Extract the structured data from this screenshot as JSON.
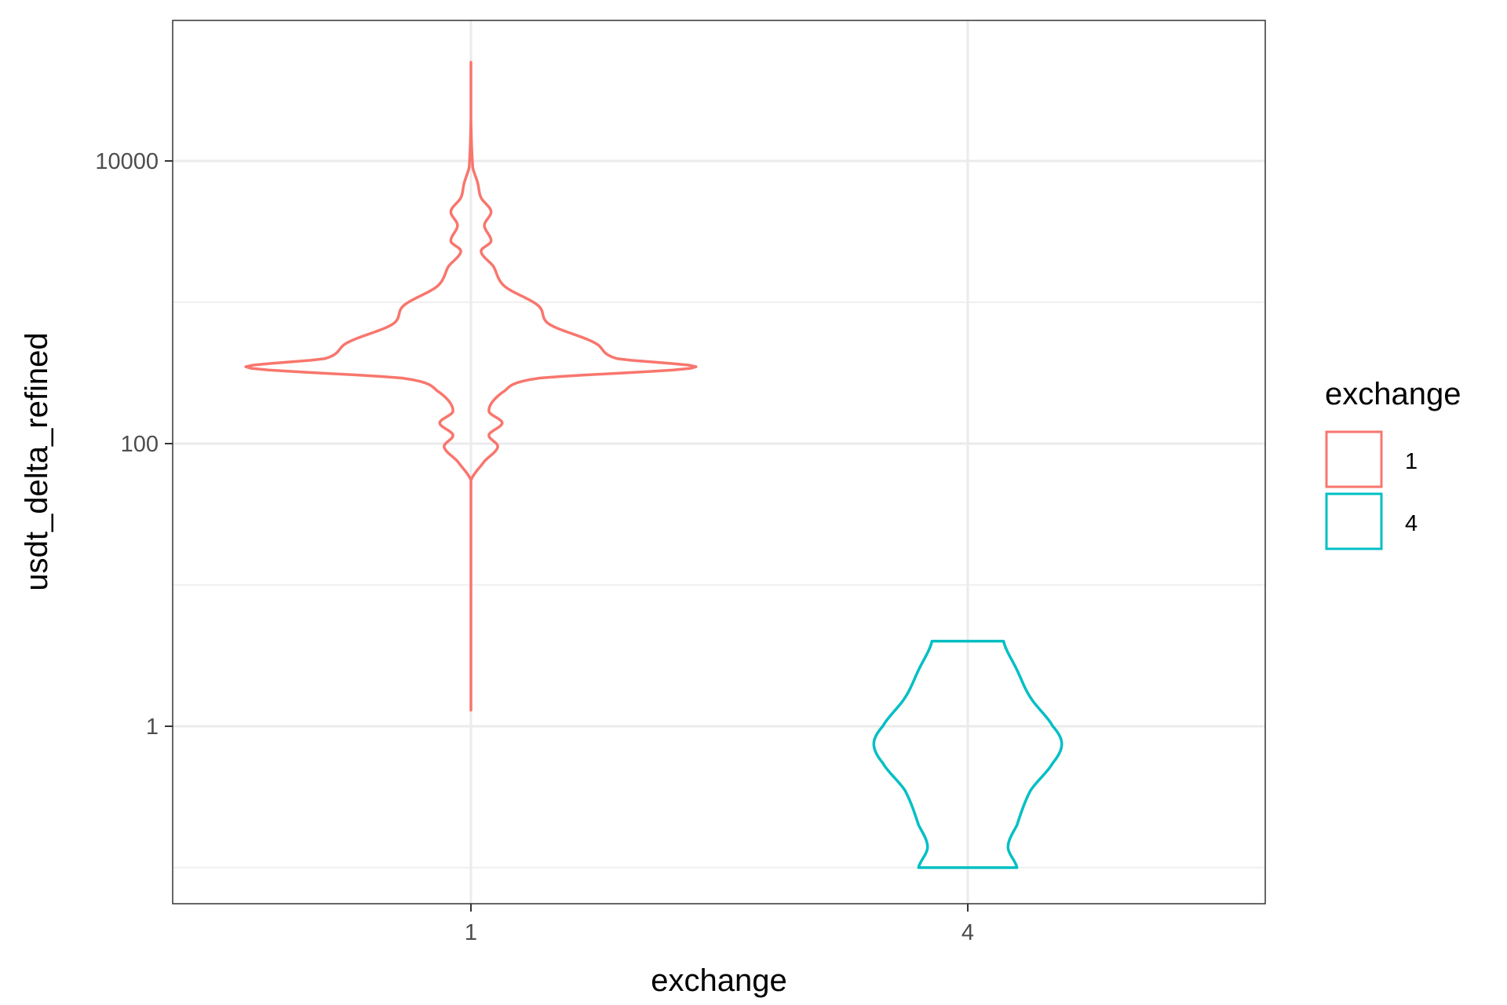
{
  "chart_data": {
    "type": "violin",
    "title": "",
    "xlabel": "exchange",
    "ylabel": "usdt_delta_refined",
    "y_scale": "log10",
    "ylim": [
      0.04,
      150000
    ],
    "y_ticks": [
      1,
      100,
      10000
    ],
    "y_tick_labels": [
      "1",
      "100",
      "10000"
    ],
    "categories": [
      "1",
      "4"
    ],
    "grid": true,
    "legend": {
      "title": "exchange",
      "position": "right",
      "entries": [
        "1",
        "4"
      ]
    },
    "colors": {
      "1": "#F8766D",
      "4": "#00BFC4"
    },
    "series": [
      {
        "name": "1",
        "category": "1",
        "min": 1.3,
        "max": 50000,
        "density_profile": [
          {
            "y": 1.3,
            "w": 0.0
          },
          {
            "y": 55,
            "w": 0.0
          },
          {
            "y": 75,
            "w": 0.06
          },
          {
            "y": 95,
            "w": 0.12
          },
          {
            "y": 115,
            "w": 0.08
          },
          {
            "y": 140,
            "w": 0.14
          },
          {
            "y": 170,
            "w": 0.08
          },
          {
            "y": 230,
            "w": 0.14
          },
          {
            "y": 290,
            "w": 0.3
          },
          {
            "y": 345,
            "w": 1.0
          },
          {
            "y": 400,
            "w": 0.65
          },
          {
            "y": 520,
            "w": 0.55
          },
          {
            "y": 700,
            "w": 0.35
          },
          {
            "y": 950,
            "w": 0.3
          },
          {
            "y": 1300,
            "w": 0.15
          },
          {
            "y": 1800,
            "w": 0.1
          },
          {
            "y": 2300,
            "w": 0.045
          },
          {
            "y": 2700,
            "w": 0.09
          },
          {
            "y": 3500,
            "w": 0.06
          },
          {
            "y": 4400,
            "w": 0.09
          },
          {
            "y": 5500,
            "w": 0.045
          },
          {
            "y": 7000,
            "w": 0.03
          },
          {
            "y": 9000,
            "w": 0.008
          },
          {
            "y": 20000,
            "w": 0.0
          },
          {
            "y": 50000,
            "w": 0.0
          }
        ]
      },
      {
        "name": "4",
        "category": "4",
        "min": 0.1,
        "max": 4,
        "density_profile": [
          {
            "y": 0.1,
            "w": 0.22
          },
          {
            "y": 0.14,
            "w": 0.18
          },
          {
            "y": 0.2,
            "w": 0.22
          },
          {
            "y": 0.35,
            "w": 0.28
          },
          {
            "y": 0.55,
            "w": 0.38
          },
          {
            "y": 0.75,
            "w": 0.42
          },
          {
            "y": 1.0,
            "w": 0.38
          },
          {
            "y": 1.6,
            "w": 0.28
          },
          {
            "y": 2.5,
            "w": 0.22
          },
          {
            "y": 4.0,
            "w": 0.16
          }
        ]
      }
    ]
  }
}
